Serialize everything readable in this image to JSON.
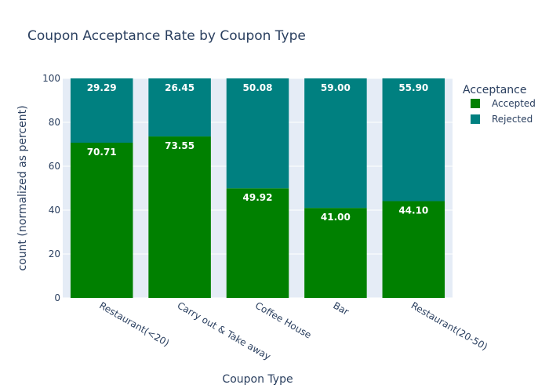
{
  "chart_data": {
    "type": "bar",
    "stacked": true,
    "title": "Coupon Acceptance Rate by Coupon Type",
    "xlabel": "Coupon Type",
    "ylabel": "count (normalized as percent)",
    "ylim": [
      0,
      100
    ],
    "yticks": [
      0,
      20,
      40,
      60,
      80,
      100
    ],
    "grid": true,
    "legend_title": "Acceptance",
    "legend_position": "top-right",
    "categories": [
      "Restaurant(<20)",
      "Carry out & Take away",
      "Coffee House",
      "Bar",
      "Restaurant(20-50)"
    ],
    "series": [
      {
        "name": "Accepted",
        "color": "#008000",
        "values": [
          70.71,
          73.55,
          49.92,
          41.0,
          44.1
        ],
        "labels": [
          "70.71",
          "73.55",
          "49.92",
          "41.00",
          "44.10"
        ]
      },
      {
        "name": "Rejected",
        "color": "#008080",
        "values": [
          29.29,
          26.45,
          50.08,
          59.0,
          55.9
        ],
        "labels": [
          "29.29",
          "26.45",
          "50.08",
          "59.00",
          "55.90"
        ]
      }
    ],
    "colors": {
      "plot_background": "#e5ecf6",
      "text": "#2a3f5f"
    }
  }
}
